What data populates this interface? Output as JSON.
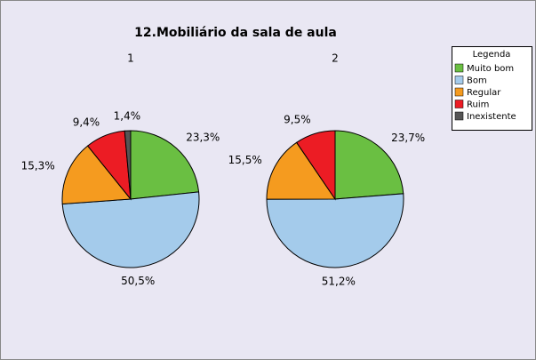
{
  "title": "12.Mobiliário da sala de aula",
  "legend_title": "Legenda",
  "chart_data": [
    {
      "type": "pie",
      "title": "1",
      "categories": [
        "Muito bom",
        "Bom",
        "Regular",
        "Ruim",
        "Inexistente"
      ],
      "values": [
        23.3,
        50.5,
        15.3,
        9.4,
        1.4
      ],
      "value_labels": [
        "23,3%",
        "50,5%",
        "15,3%",
        "9,4%",
        "1,4%"
      ],
      "colors": [
        "#6abf42",
        "#a4cbeb",
        "#f59b1f",
        "#ec1c24",
        "#555555"
      ]
    },
    {
      "type": "pie",
      "title": "2",
      "categories": [
        "Muito bom",
        "Bom",
        "Regular",
        "Ruim"
      ],
      "values": [
        23.7,
        51.2,
        15.5,
        9.5
      ],
      "value_labels": [
        "23,7%",
        "51,2%",
        "15,5%",
        "9,5%"
      ],
      "colors": [
        "#6abf42",
        "#a4cbeb",
        "#f59b1f",
        "#ec1c24"
      ]
    }
  ]
}
